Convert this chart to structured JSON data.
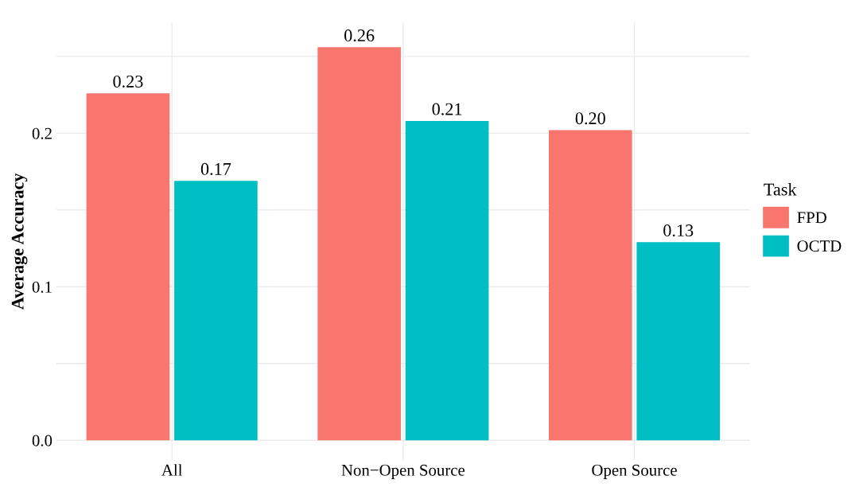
{
  "chart_data": {
    "type": "bar",
    "ylabel": "Average Accuracy",
    "legend_title": "Task",
    "legend": "right",
    "categories": [
      "All",
      "Non−Open Source",
      "Open Source"
    ],
    "series": [
      {
        "name": "FPD",
        "color": "#f8766d",
        "values": [
          0.226,
          0.256,
          0.202
        ],
        "value_labels": [
          "0.23",
          "0.26",
          "0.20"
        ]
      },
      {
        "name": "OCTD",
        "color": "#00bfc4",
        "values": [
          0.169,
          0.208,
          0.129
        ],
        "value_labels": [
          "0.17",
          "0.21",
          "0.13"
        ]
      }
    ],
    "ylim": [
      -0.013,
      0.272
    ],
    "yticks": [
      {
        "value": 0,
        "label": "0.0"
      },
      {
        "value": 0.05,
        "label": null
      },
      {
        "value": 0.1,
        "label": "0.1"
      },
      {
        "value": 0.15,
        "label": null
      },
      {
        "value": 0.2,
        "label": "0.2"
      },
      {
        "value": 0.25,
        "label": null
      }
    ],
    "grid": true
  }
}
